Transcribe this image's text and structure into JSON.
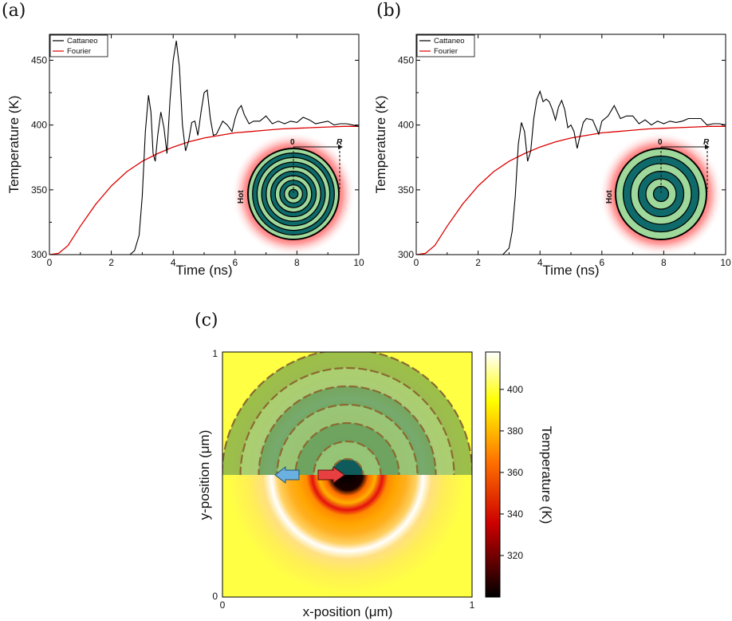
{
  "colors": {
    "cattaneo": "#000000",
    "fourier": "#dd0000",
    "ring_dark": "#0f6b6b",
    "ring_light": "#9ed89a",
    "hot_glow": "#ff3030",
    "heatmap_background": "#ffff44",
    "arrow_blue": "#6ab0e0",
    "arrow_red": "#e84040"
  },
  "chart_data": [
    {
      "panel": "(a)",
      "type": "line",
      "xlabel": "Time (ns)",
      "ylabel": "Temperature (K)",
      "xlim": [
        0,
        10
      ],
      "ylim": [
        300,
        470
      ],
      "xticks": [
        0,
        2,
        4,
        6,
        8,
        10
      ],
      "yticks": [
        300,
        350,
        400,
        450
      ],
      "legend_position": "top-left",
      "inset": {
        "labels": [
          "0",
          "R",
          "Hot"
        ],
        "rings": 5
      },
      "series": [
        {
          "name": "Cattaneo",
          "color": "#000000",
          "x": [
            0,
            2.6,
            2.75,
            2.9,
            3.0,
            3.1,
            3.2,
            3.28,
            3.35,
            3.42,
            3.5,
            3.6,
            3.7,
            3.8,
            3.9,
            4.0,
            4.1,
            4.2,
            4.3,
            4.4,
            4.5,
            4.6,
            4.7,
            4.8,
            4.9,
            5.0,
            5.1,
            5.2,
            5.3,
            5.4,
            5.5,
            5.6,
            5.75,
            5.9,
            6.0,
            6.1,
            6.2,
            6.3,
            6.45,
            6.6,
            6.8,
            7.0,
            7.2,
            7.4,
            7.6,
            7.8,
            8.0,
            8.2,
            8.4,
            8.6,
            8.8,
            9.0,
            9.2,
            9.4,
            9.6,
            9.8,
            10
          ],
          "y": [
            300,
            300,
            303,
            315,
            345,
            395,
            423,
            410,
            378,
            372,
            392,
            410,
            398,
            378,
            420,
            450,
            465,
            445,
            400,
            380,
            388,
            402,
            403,
            392,
            410,
            425,
            427,
            405,
            392,
            393,
            398,
            403,
            400,
            395,
            405,
            412,
            415,
            408,
            401,
            403,
            403,
            407,
            401,
            403,
            401,
            403,
            402,
            406,
            404,
            401,
            402,
            403,
            400,
            401,
            401,
            400,
            399
          ]
        },
        {
          "name": "Fourier",
          "color": "#dd0000",
          "x": [
            0,
            0.3,
            0.6,
            1.0,
            1.5,
            2.0,
            2.5,
            3.0,
            3.5,
            4.0,
            4.5,
            5.0,
            5.5,
            6.0,
            6.5,
            7.0,
            7.5,
            8.0,
            8.5,
            9.0,
            9.5,
            10
          ],
          "y": [
            300,
            301,
            307,
            322,
            339,
            353,
            364,
            372,
            378,
            383,
            387,
            390,
            392,
            394,
            395,
            396,
            397,
            397.5,
            398,
            398.5,
            399,
            399
          ]
        }
      ]
    },
    {
      "panel": "(b)",
      "type": "line",
      "xlabel": "Time (ns)",
      "ylabel": "Temperature (K)",
      "xlim": [
        0,
        10
      ],
      "ylim": [
        300,
        470
      ],
      "xticks": [
        0,
        2,
        4,
        6,
        8,
        10
      ],
      "yticks": [
        300,
        350,
        400,
        450
      ],
      "legend_position": "top-left",
      "inset": {
        "labels": [
          "0",
          "R",
          "Hot"
        ],
        "rings": 3
      },
      "series": [
        {
          "name": "Cattaneo",
          "color": "#000000",
          "x": [
            0,
            2.8,
            3.0,
            3.1,
            3.2,
            3.3,
            3.4,
            3.5,
            3.6,
            3.7,
            3.8,
            3.9,
            4.0,
            4.1,
            4.2,
            4.3,
            4.4,
            4.5,
            4.6,
            4.7,
            4.8,
            4.9,
            5.0,
            5.1,
            5.2,
            5.3,
            5.4,
            5.5,
            5.7,
            5.9,
            6.0,
            6.2,
            6.4,
            6.6,
            6.8,
            7.0,
            7.2,
            7.4,
            7.6,
            7.8,
            8.0,
            8.2,
            8.4,
            8.6,
            8.8,
            9.0,
            9.2,
            9.4,
            9.6,
            9.8,
            10
          ],
          "y": [
            300,
            300,
            305,
            318,
            345,
            385,
            402,
            395,
            372,
            380,
            405,
            420,
            426,
            418,
            420,
            418,
            412,
            404,
            414,
            419,
            412,
            398,
            400,
            395,
            382,
            392,
            402,
            405,
            404,
            393,
            403,
            407,
            415,
            405,
            407,
            407,
            401,
            404,
            400,
            403,
            401,
            403,
            402,
            403,
            405,
            405,
            405,
            400,
            401,
            401,
            400
          ]
        },
        {
          "name": "Fourier",
          "color": "#dd0000",
          "x": [
            0,
            0.3,
            0.6,
            1.0,
            1.5,
            2.0,
            2.5,
            3.0,
            3.5,
            4.0,
            4.5,
            5.0,
            5.5,
            6.0,
            6.5,
            7.0,
            7.5,
            8.0,
            8.5,
            9.0,
            9.5,
            10
          ],
          "y": [
            300,
            301,
            307,
            322,
            339,
            353,
            364,
            372,
            378,
            383,
            387,
            390,
            392,
            394,
            395,
            396,
            397,
            397.5,
            398,
            398.5,
            399,
            399
          ]
        }
      ]
    },
    {
      "panel": "(c)",
      "type": "heatmap",
      "xlabel": "x-position (μm)",
      "ylabel": "y-position (μm)",
      "xlim": [
        0,
        1
      ],
      "ylim": [
        0,
        1
      ],
      "xticks": [
        0,
        1
      ],
      "yticks": [
        0,
        1
      ],
      "colorbar": {
        "label": "Temperature (K)",
        "range": [
          300,
          418
        ],
        "ticks": [
          320,
          340,
          360,
          380,
          400
        ]
      }
    }
  ]
}
